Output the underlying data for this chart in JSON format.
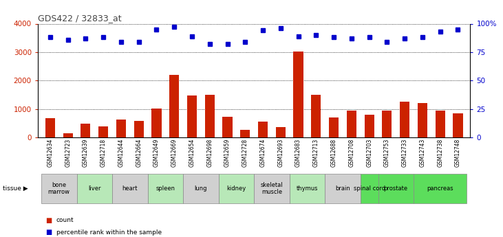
{
  "title": "GDS422 / 32833_at",
  "samples": [
    "GSM12634",
    "GSM12723",
    "GSM12639",
    "GSM12718",
    "GSM12644",
    "GSM12664",
    "GSM12649",
    "GSM12669",
    "GSM12654",
    "GSM12698",
    "GSM12659",
    "GSM12728",
    "GSM12674",
    "GSM12693",
    "GSM12683",
    "GSM12713",
    "GSM12688",
    "GSM12708",
    "GSM12703",
    "GSM12753",
    "GSM12733",
    "GSM12743",
    "GSM12738",
    "GSM12748"
  ],
  "counts": [
    680,
    150,
    480,
    400,
    640,
    590,
    1020,
    2200,
    1480,
    1510,
    720,
    280,
    560,
    360,
    3020,
    1490,
    700,
    950,
    800,
    950,
    1260,
    1200,
    950,
    850
  ],
  "percentile_ranks": [
    88,
    86,
    87,
    88,
    84,
    84,
    95,
    97,
    89,
    82,
    82,
    84,
    94,
    96,
    89,
    90,
    88,
    87,
    88,
    84,
    87,
    88,
    93,
    95
  ],
  "tissues": [
    {
      "label": "bone\nmarrow",
      "start": 0,
      "end": 2,
      "color": "#d0d0d0"
    },
    {
      "label": "liver",
      "start": 2,
      "end": 4,
      "color": "#b8e8b8"
    },
    {
      "label": "heart",
      "start": 4,
      "end": 6,
      "color": "#d0d0d0"
    },
    {
      "label": "spleen",
      "start": 6,
      "end": 8,
      "color": "#b8e8b8"
    },
    {
      "label": "lung",
      "start": 8,
      "end": 10,
      "color": "#d0d0d0"
    },
    {
      "label": "kidney",
      "start": 10,
      "end": 12,
      "color": "#b8e8b8"
    },
    {
      "label": "skeletal\nmuscle",
      "start": 12,
      "end": 14,
      "color": "#d0d0d0"
    },
    {
      "label": "thymus",
      "start": 14,
      "end": 16,
      "color": "#b8e8b8"
    },
    {
      "label": "brain",
      "start": 16,
      "end": 18,
      "color": "#d0d0d0"
    },
    {
      "label": "spinal cord",
      "start": 18,
      "end": 19,
      "color": "#5cdd5c"
    },
    {
      "label": "prostate",
      "start": 19,
      "end": 21,
      "color": "#5cdd5c"
    },
    {
      "label": "pancreas",
      "start": 21,
      "end": 24,
      "color": "#5cdd5c"
    }
  ],
  "bar_color": "#cc2200",
  "dot_color": "#0000cc",
  "left_ylim": [
    0,
    4000
  ],
  "left_yticks": [
    0,
    1000,
    2000,
    3000,
    4000
  ],
  "right_yticks_labels": [
    "0",
    "25",
    "50",
    "75",
    "100%"
  ],
  "right_yticks_vals": [
    0,
    1000,
    2000,
    3000,
    4000
  ],
  "percentile_scale": 40,
  "title_color": "#444444",
  "left_axis_color": "#cc2200",
  "right_axis_color": "#0000cc"
}
